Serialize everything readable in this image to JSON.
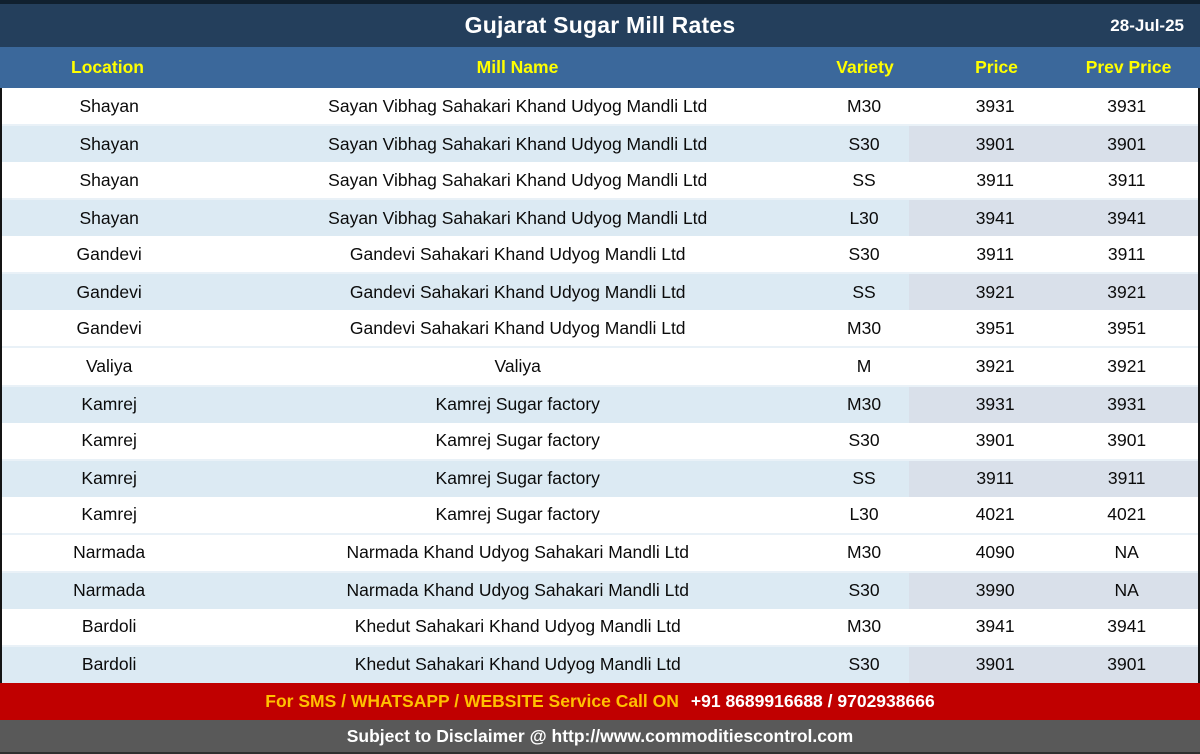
{
  "title_bar": {
    "title": "Gujarat Sugar Mill Rates",
    "date": "28-Jul-25"
  },
  "table": {
    "columns": [
      "Location",
      "Mill Name",
      "Variety",
      "Price",
      "Prev Price"
    ],
    "rows": [
      {
        "location": "Shayan",
        "mill": "Sayan Vibhag Sahakari Khand Udyog Mandli Ltd",
        "variety": "M30",
        "price": "3931",
        "prev_price": "3931",
        "shaded": false
      },
      {
        "location": "Shayan",
        "mill": "Sayan Vibhag Sahakari Khand Udyog Mandli Ltd",
        "variety": "S30",
        "price": "3901",
        "prev_price": "3901",
        "shaded": true
      },
      {
        "location": "Shayan",
        "mill": "Sayan Vibhag Sahakari Khand Udyog Mandli Ltd",
        "variety": "SS",
        "price": "3911",
        "prev_price": "3911",
        "shaded": false
      },
      {
        "location": "Shayan",
        "mill": "Sayan Vibhag Sahakari Khand Udyog Mandli Ltd",
        "variety": "L30",
        "price": "3941",
        "prev_price": "3941",
        "shaded": true
      },
      {
        "location": "Gandevi",
        "mill": "Gandevi Sahakari Khand Udyog Mandli Ltd",
        "variety": "S30",
        "price": "3911",
        "prev_price": "3911",
        "shaded": false
      },
      {
        "location": "Gandevi",
        "mill": "Gandevi Sahakari Khand Udyog Mandli Ltd",
        "variety": "SS",
        "price": "3921",
        "prev_price": "3921",
        "shaded": true
      },
      {
        "location": "Gandevi",
        "mill": "Gandevi Sahakari Khand Udyog Mandli Ltd",
        "variety": "M30",
        "price": "3951",
        "prev_price": "3951",
        "shaded": false
      },
      {
        "location": "Valiya",
        "mill": "Valiya",
        "variety": "M",
        "price": "3921",
        "prev_price": "3921",
        "shaded": false
      },
      {
        "location": "Kamrej",
        "mill": "Kamrej Sugar factory",
        "variety": "M30",
        "price": "3931",
        "prev_price": "3931",
        "shaded": true
      },
      {
        "location": "Kamrej",
        "mill": "Kamrej Sugar factory",
        "variety": "S30",
        "price": "3901",
        "prev_price": "3901",
        "shaded": false
      },
      {
        "location": "Kamrej",
        "mill": "Kamrej Sugar factory",
        "variety": "SS",
        "price": "3911",
        "prev_price": "3911",
        "shaded": true
      },
      {
        "location": "Kamrej",
        "mill": "Kamrej Sugar factory",
        "variety": "L30",
        "price": "4021",
        "prev_price": "4021",
        "shaded": false
      },
      {
        "location": "Narmada",
        "mill": "Narmada Khand Udyog Sahakari Mandli Ltd",
        "variety": "M30",
        "price": "4090",
        "prev_price": "NA",
        "shaded": false
      },
      {
        "location": "Narmada",
        "mill": "Narmada Khand Udyog Sahakari Mandli Ltd",
        "variety": "S30",
        "price": "3990",
        "prev_price": "NA",
        "shaded": true
      },
      {
        "location": "Bardoli",
        "mill": "Khedut Sahakari Khand Udyog Mandli Ltd",
        "variety": "M30",
        "price": "3941",
        "prev_price": "3941",
        "shaded": false
      },
      {
        "location": "Bardoli",
        "mill": "Khedut Sahakari Khand Udyog Mandli Ltd",
        "variety": "S30",
        "price": "3901",
        "prev_price": "3901",
        "shaded": true
      }
    ]
  },
  "footer": {
    "sms_label": "For SMS / WHATSAPP / WEBSITE Service Call  ON",
    "phone_numbers": "+91 8689916688 / 9702938666",
    "disclaimer": "Subject to Disclaimer @  http://www.commoditiescontrol.com"
  },
  "colors": {
    "title_bg": "#243F5C",
    "header_bg": "#3B689B",
    "header_text": "#FFFF00",
    "row_shaded_bg": "#DCEAF3",
    "row_shaded_price_bg": "#D9E0EA",
    "sms_bar_bg": "#C00000",
    "sms_label_text": "#FFC000",
    "disclaimer_bar_bg": "#595959"
  }
}
